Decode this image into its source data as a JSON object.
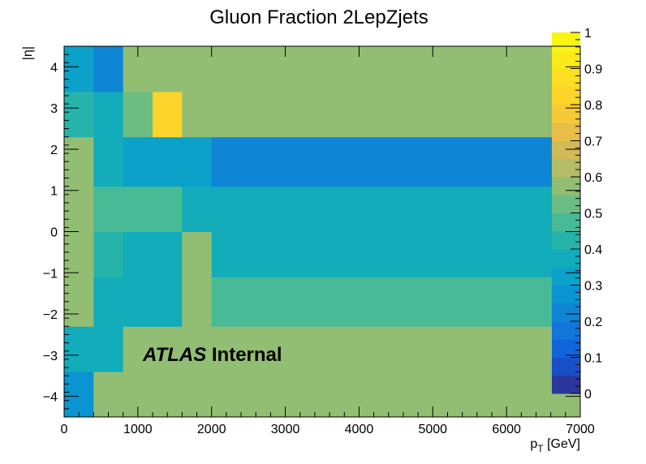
{
  "chart_data": {
    "type": "heatmap",
    "title": "Gluon Fraction 2LepZjets",
    "xlabel_main": "p",
    "xlabel_sub": "T",
    "xlabel_unit": " [GeV]",
    "ylabel": "|η|",
    "annotation_bold": "ATLAS",
    "annotation_normal": " Internal",
    "xlim": [
      0,
      7000
    ],
    "ylim": [
      -4.5,
      4.5
    ],
    "zlim": [
      0,
      1
    ],
    "x_ticks": [
      "0",
      "1000",
      "2000",
      "3000",
      "4000",
      "5000",
      "6000",
      "7000"
    ],
    "y_ticks": [
      "−4",
      "−3",
      "−2",
      "−1",
      "0",
      "1",
      "2",
      "3",
      "4"
    ],
    "z_ticks": [
      "0",
      "0.1",
      "0.2",
      "0.3",
      "0.4",
      "0.5",
      "0.6",
      "0.7",
      "0.8",
      "0.9",
      "1"
    ],
    "x_edges": [
      0,
      400,
      800,
      1200,
      1600,
      2000,
      7000
    ],
    "y_edges": [
      -4.5,
      -3.4,
      -2.3,
      -1.1,
      0,
      1.1,
      2.3,
      3.4,
      4.5
    ],
    "z": [
      [
        0.25,
        0.55,
        0.55,
        0.55,
        0.55,
        0.55
      ],
      [
        0.35,
        0.35,
        0.55,
        0.55,
        0.55,
        0.55
      ],
      [
        0.55,
        0.35,
        0.35,
        0.35,
        0.55,
        0.45
      ],
      [
        0.55,
        0.4,
        0.35,
        0.35,
        0.55,
        0.35
      ],
      [
        0.55,
        0.45,
        0.45,
        0.45,
        0.35,
        0.35
      ],
      [
        0.55,
        0.35,
        0.3,
        0.3,
        0.3,
        0.2
      ],
      [
        0.42,
        0.38,
        0.5,
        0.82,
        0.55,
        0.55
      ],
      [
        0.32,
        0.22,
        0.55,
        0.55,
        0.55,
        0.55
      ]
    ]
  }
}
